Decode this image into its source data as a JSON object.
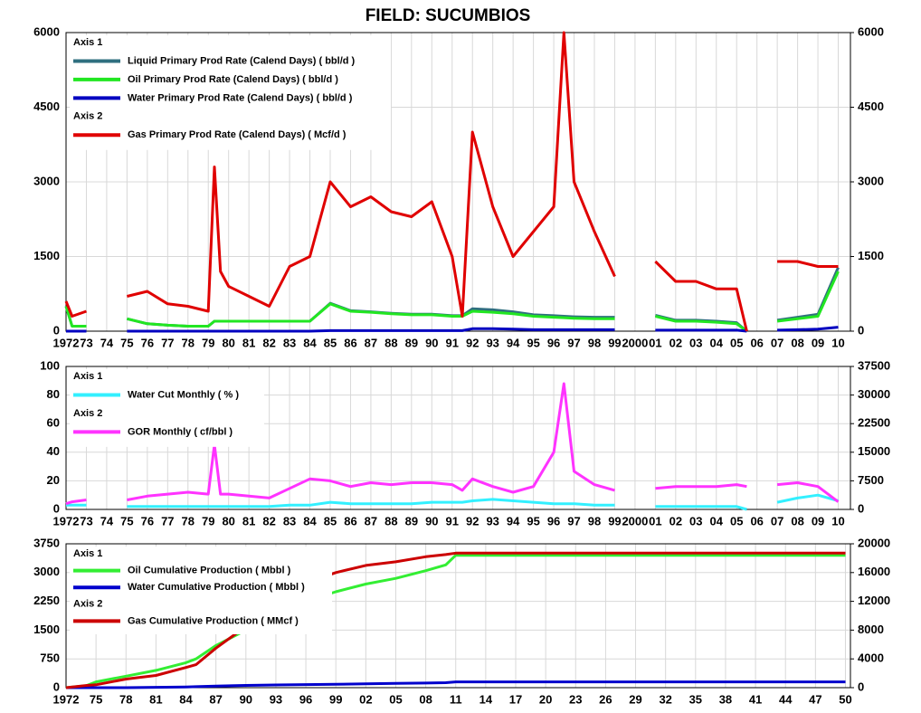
{
  "title": "FIELD: SUCUMBIOS",
  "chart_data": [
    {
      "type": "line",
      "legend_headers": [
        "Axis 1",
        "Axis 2"
      ],
      "x": [
        1972,
        1972.3,
        1973,
        1974,
        1975,
        1976,
        1977,
        1978,
        1979,
        1979.3,
        1979.6,
        1980,
        1981,
        1982,
        1983,
        1984,
        1985,
        1986,
        1987,
        1988,
        1989,
        1990,
        1991,
        1991.5,
        1992,
        1993,
        1994,
        1995,
        1996,
        1996.5,
        1997,
        1998,
        1999,
        2000,
        2001,
        2002,
        2003,
        2004,
        2005,
        2005.5,
        2006,
        2007,
        2008,
        2009,
        2010
      ],
      "xlim": [
        1972,
        2010.6
      ],
      "xticks": [
        1972,
        {
          "value": 1973,
          "label": "73"
        },
        {
          "value": 1974,
          "label": "74"
        },
        {
          "value": 1975,
          "label": "75"
        },
        {
          "value": 1976,
          "label": "76"
        },
        {
          "value": 1977,
          "label": "77"
        },
        {
          "value": 1978,
          "label": "78"
        },
        {
          "value": 1979,
          "label": "79"
        },
        {
          "value": 1980,
          "label": "80"
        },
        {
          "value": 1981,
          "label": "81"
        },
        {
          "value": 1982,
          "label": "82"
        },
        {
          "value": 1983,
          "label": "83"
        },
        {
          "value": 1984,
          "label": "84"
        },
        {
          "value": 1985,
          "label": "85"
        },
        {
          "value": 1986,
          "label": "86"
        },
        {
          "value": 1987,
          "label": "87"
        },
        {
          "value": 1988,
          "label": "88"
        },
        {
          "value": 1989,
          "label": "89"
        },
        {
          "value": 1990,
          "label": "90"
        },
        {
          "value": 1991,
          "label": "91"
        },
        {
          "value": 1992,
          "label": "92"
        },
        {
          "value": 1993,
          "label": "93"
        },
        {
          "value": 1994,
          "label": "94"
        },
        {
          "value": 1995,
          "label": "95"
        },
        {
          "value": 1996,
          "label": "96"
        },
        {
          "value": 1997,
          "label": "97"
        },
        {
          "value": 1998,
          "label": "98"
        },
        {
          "value": 1999,
          "label": "99"
        },
        2000,
        {
          "value": 2001,
          "label": "01"
        },
        {
          "value": 2002,
          "label": "02"
        },
        {
          "value": 2003,
          "label": "03"
        },
        {
          "value": 2004,
          "label": "04"
        },
        {
          "value": 2005,
          "label": "05"
        },
        {
          "value": 2006,
          "label": "06"
        },
        {
          "value": 2007,
          "label": "07"
        },
        {
          "value": 2008,
          "label": "08"
        },
        {
          "value": 2009,
          "label": "09"
        },
        {
          "value": 2010,
          "label": "10"
        }
      ],
      "ylim": [
        0,
        6000
      ],
      "yticks": [
        0,
        1500,
        3000,
        4500,
        6000
      ],
      "y2lim": [
        0,
        6000
      ],
      "y2ticks": [
        0,
        1500,
        3000,
        4500,
        6000
      ],
      "grid": true,
      "series": [
        {
          "name": "Liquid Primary Prod Rate (Calend Days) ( bbl/d )",
          "color": "#2f6f7f",
          "values": [
            500,
            100,
            100,
            null,
            250,
            150,
            120,
            100,
            100,
            200,
            200,
            200,
            200,
            200,
            200,
            200,
            560,
            410,
            390,
            360,
            340,
            340,
            310,
            310,
            450,
            430,
            390,
            330,
            310,
            300,
            290,
            280,
            280,
            null,
            320,
            220,
            220,
            200,
            170,
            0,
            null,
            220,
            280,
            340,
            1280
          ]
        },
        {
          "name": "Oil Primary Prod Rate (Calend Days) ( bbl/d )",
          "color": "#22e622",
          "values": [
            500,
            100,
            100,
            null,
            250,
            150,
            120,
            100,
            100,
            200,
            200,
            200,
            200,
            200,
            200,
            200,
            550,
            400,
            380,
            350,
            330,
            330,
            300,
            300,
            400,
            380,
            350,
            300,
            280,
            270,
            260,
            250,
            250,
            null,
            300,
            200,
            200,
            180,
            150,
            0,
            null,
            200,
            250,
            300,
            1200
          ]
        },
        {
          "name": "Water Primary Prod Rate (Calend Days) ( bbl/d )",
          "color": "#0000c0",
          "values": [
            0,
            0,
            0,
            null,
            0,
            0,
            0,
            0,
            0,
            0,
            0,
            0,
            0,
            0,
            0,
            0,
            10,
            10,
            10,
            10,
            10,
            10,
            10,
            10,
            50,
            50,
            40,
            30,
            30,
            30,
            30,
            30,
            30,
            null,
            20,
            20,
            20,
            20,
            20,
            0,
            null,
            20,
            30,
            40,
            80
          ]
        },
        {
          "name": "Gas Primary Prod Rate (Calend Days) ( Mcf/d )",
          "color": "#e00000",
          "axis": "y2",
          "values": [
            600,
            300,
            400,
            null,
            700,
            800,
            550,
            500,
            400,
            3300,
            1200,
            900,
            700,
            500,
            1300,
            1500,
            3000,
            2500,
            2700,
            2400,
            2300,
            2600,
            1500,
            300,
            4000,
            2500,
            1500,
            2000,
            2500,
            6000,
            3000,
            2000,
            1100,
            null,
            1400,
            1000,
            1000,
            850,
            850,
            0,
            null,
            1400,
            1400,
            1300,
            1300
          ]
        }
      ]
    },
    {
      "type": "line",
      "legend_headers": [
        "Axis 1",
        "Axis 2"
      ],
      "x": [
        1972,
        1972.3,
        1973,
        1974,
        1975,
        1976,
        1977,
        1978,
        1979,
        1979.3,
        1979.6,
        1980,
        1981,
        1982,
        1983,
        1984,
        1985,
        1986,
        1987,
        1988,
        1989,
        1990,
        1991,
        1991.5,
        1992,
        1993,
        1994,
        1995,
        1996,
        1996.5,
        1997,
        1998,
        1999,
        2000,
        2001,
        2002,
        2003,
        2004,
        2005,
        2005.5,
        2006,
        2007,
        2008,
        2009,
        2010
      ],
      "xlim": [
        1972,
        2010.6
      ],
      "xticks": [
        1972,
        {
          "value": 1973,
          "label": "73"
        },
        {
          "value": 1974,
          "label": "74"
        },
        {
          "value": 1975,
          "label": "75"
        },
        {
          "value": 1976,
          "label": "76"
        },
        {
          "value": 1977,
          "label": "77"
        },
        {
          "value": 1978,
          "label": "78"
        },
        {
          "value": 1979,
          "label": "79"
        },
        {
          "value": 1980,
          "label": "80"
        },
        {
          "value": 1981,
          "label": "81"
        },
        {
          "value": 1982,
          "label": "82"
        },
        {
          "value": 1983,
          "label": "83"
        },
        {
          "value": 1984,
          "label": "84"
        },
        {
          "value": 1985,
          "label": "85"
        },
        {
          "value": 1986,
          "label": "86"
        },
        {
          "value": 1987,
          "label": "87"
        },
        {
          "value": 1988,
          "label": "88"
        },
        {
          "value": 1989,
          "label": "89"
        },
        {
          "value": 1990,
          "label": "90"
        },
        {
          "value": 1991,
          "label": "91"
        },
        {
          "value": 1992,
          "label": "92"
        },
        {
          "value": 1993,
          "label": "93"
        },
        {
          "value": 1994,
          "label": "94"
        },
        {
          "value": 1995,
          "label": "95"
        },
        {
          "value": 1996,
          "label": "96"
        },
        {
          "value": 1997,
          "label": "97"
        },
        {
          "value": 1998,
          "label": "98"
        },
        {
          "value": 1999,
          "label": "99"
        },
        2000,
        {
          "value": 2001,
          "label": "01"
        },
        {
          "value": 2002,
          "label": "02"
        },
        {
          "value": 2003,
          "label": "03"
        },
        {
          "value": 2004,
          "label": "04"
        },
        {
          "value": 2005,
          "label": "05"
        },
        {
          "value": 2006,
          "label": "06"
        },
        {
          "value": 2007,
          "label": "07"
        },
        {
          "value": 2008,
          "label": "08"
        },
        {
          "value": 2009,
          "label": "09"
        },
        {
          "value": 2010,
          "label": "10"
        }
      ],
      "ylim": [
        0,
        100
      ],
      "yticks": [
        0,
        20,
        40,
        60,
        80,
        100
      ],
      "y2lim": [
        0,
        37500
      ],
      "y2ticks": [
        0,
        7500,
        15000,
        22500,
        30000,
        37500
      ],
      "grid": true,
      "series": [
        {
          "name": "Water Cut Monthly ( % )",
          "color": "#33f0ff",
          "values": [
            3,
            3,
            3,
            null,
            2,
            2,
            2,
            2,
            2,
            2,
            2,
            2,
            2,
            2,
            3,
            3,
            5,
            4,
            4,
            4,
            4,
            5,
            5,
            5,
            6,
            7,
            6,
            5,
            4,
            4,
            4,
            3,
            3,
            null,
            2,
            2,
            2,
            2,
            2,
            0,
            null,
            5,
            8,
            10,
            6
          ]
        },
        {
          "name": "GOR Monthly ( cf/bbl )",
          "color": "#ff33ff",
          "axis": "y2",
          "values": [
            1500,
            2000,
            2500,
            null,
            2500,
            3500,
            4000,
            4500,
            4000,
            17000,
            4000,
            4000,
            3500,
            3000,
            5500,
            8000,
            7500,
            6000,
            7000,
            6500,
            7000,
            7000,
            6500,
            5000,
            8000,
            6000,
            4500,
            6000,
            15000,
            33000,
            10000,
            6500,
            5000,
            null,
            5500,
            6000,
            6000,
            6000,
            6500,
            6000,
            null,
            6500,
            7000,
            6000,
            2000
          ]
        }
      ]
    },
    {
      "type": "line",
      "legend_headers": [
        "Axis 1",
        "Axis 2"
      ],
      "x": [
        1972,
        1974,
        1975,
        1978,
        1981,
        1984,
        1985,
        1987,
        1990,
        1993,
        1996,
        1999,
        2002,
        2005,
        2008,
        2010,
        2011,
        2050
      ],
      "xlim": [
        1972,
        2050.5
      ],
      "xticks": [
        1972,
        {
          "value": 1975,
          "label": "75"
        },
        {
          "value": 1978,
          "label": "78"
        },
        {
          "value": 1981,
          "label": "81"
        },
        {
          "value": 1984,
          "label": "84"
        },
        {
          "value": 1987,
          "label": "87"
        },
        {
          "value": 1990,
          "label": "90"
        },
        {
          "value": 1993,
          "label": "93"
        },
        {
          "value": 1996,
          "label": "96"
        },
        {
          "value": 1999,
          "label": "99"
        },
        {
          "value": 2002,
          "label": "02"
        },
        {
          "value": 2005,
          "label": "05"
        },
        {
          "value": 2008,
          "label": "08"
        },
        {
          "value": 2011,
          "label": "11"
        },
        {
          "value": 2014,
          "label": "14"
        },
        {
          "value": 2017,
          "label": "17"
        },
        {
          "value": 2020,
          "label": "20"
        },
        {
          "value": 2023,
          "label": "23"
        },
        {
          "value": 2026,
          "label": "26"
        },
        {
          "value": 2029,
          "label": "29"
        },
        {
          "value": 2032,
          "label": "32"
        },
        {
          "value": 2035,
          "label": "35"
        },
        {
          "value": 2038,
          "label": "38"
        },
        {
          "value": 2041,
          "label": "41"
        },
        {
          "value": 2044,
          "label": "44"
        },
        {
          "value": 2047,
          "label": "47"
        },
        {
          "value": 2050,
          "label": "50"
        }
      ],
      "ylim": [
        0,
        3750
      ],
      "yticks": [
        0,
        750,
        1500,
        2250,
        3000,
        3750
      ],
      "y2lim": [
        0,
        20000
      ],
      "y2ticks": [
        0,
        4000,
        8000,
        12000,
        16000,
        20000
      ],
      "grid": true,
      "series": [
        {
          "name": "Oil Cumulative Production ( Mbbl )",
          "color": "#33ee33",
          "values": [
            0,
            50,
            150,
            300,
            450,
            650,
            750,
            1100,
            1500,
            1900,
            2250,
            2500,
            2700,
            2850,
            3050,
            3200,
            3450,
            3450
          ]
        },
        {
          "name": "Water Cumulative Production ( Mbbl )",
          "color": "#0000cc",
          "values": [
            0,
            0,
            0,
            0,
            10,
            20,
            25,
            40,
            60,
            70,
            80,
            90,
            100,
            110,
            120,
            130,
            150,
            150
          ]
        },
        {
          "name": "Gas Cumulative Production ( MMcf )",
          "color": "#cc0000",
          "axis": "y2",
          "values": [
            0,
            300,
            400,
            1200,
            1700,
            2800,
            3200,
            5500,
            8500,
            12000,
            14500,
            16000,
            17000,
            17500,
            18200,
            18500,
            18700,
            18700
          ]
        }
      ]
    }
  ]
}
